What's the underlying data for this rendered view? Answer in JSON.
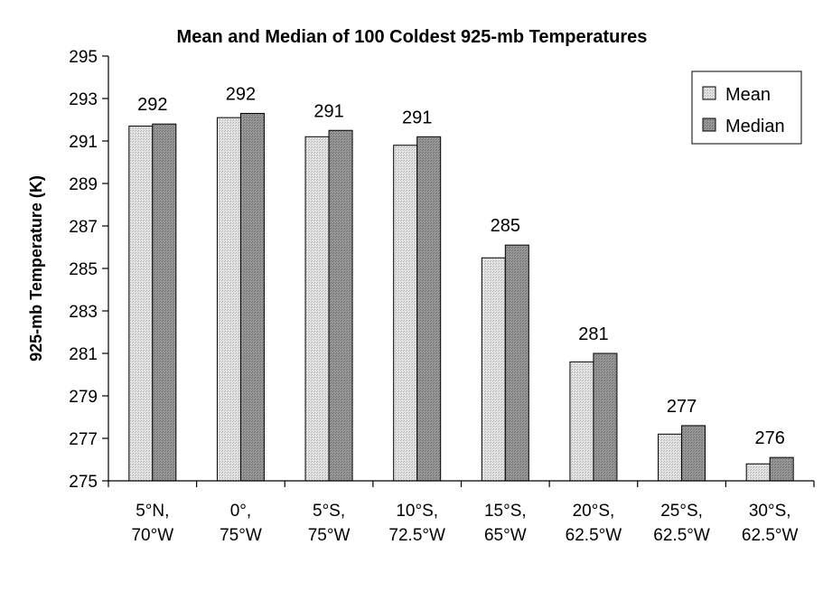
{
  "chart_data": {
    "type": "bar",
    "title": "Mean and Median of 100 Coldest 925-mb Temperatures",
    "xlabel": "",
    "ylabel": "925-mb Temperature (K)",
    "ylim": [
      275,
      295
    ],
    "yticks": [
      275,
      277,
      279,
      281,
      283,
      285,
      287,
      289,
      291,
      293,
      295
    ],
    "categories": [
      [
        "5°N,",
        "70°W"
      ],
      [
        "0°,",
        "75°W"
      ],
      [
        "5°S,",
        "75°W"
      ],
      [
        "10°S,",
        "72.5°W"
      ],
      [
        "15°S,",
        "65°W"
      ],
      [
        "20°S,",
        "62.5°W"
      ],
      [
        "25°S,",
        "62.5°W"
      ],
      [
        "30°S,",
        "62.5°W"
      ]
    ],
    "series": [
      {
        "name": "Mean",
        "values": [
          291.7,
          292.1,
          291.2,
          290.8,
          285.5,
          280.6,
          277.2,
          275.8
        ],
        "color": "#d9d9d9"
      },
      {
        "name": "Median",
        "values": [
          291.8,
          292.3,
          291.5,
          291.2,
          286.1,
          281.0,
          277.6,
          276.1
        ],
        "color": "#8c8c8c"
      }
    ],
    "data_labels": [
      "292",
      "292",
      "291",
      "291",
      "285",
      "281",
      "277",
      "276"
    ],
    "legend": {
      "position": "top-right",
      "entries": [
        "Mean",
        "Median"
      ]
    },
    "grid": false
  }
}
